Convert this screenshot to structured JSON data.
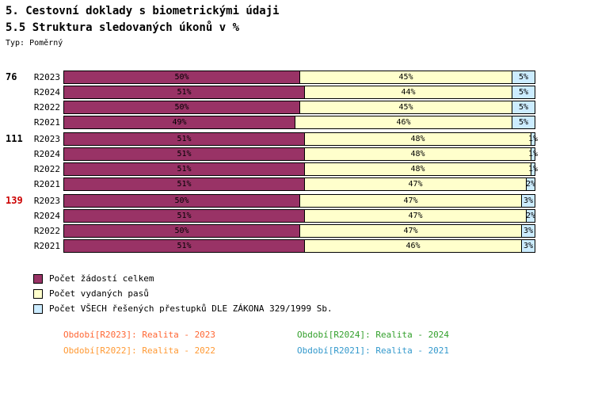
{
  "header": {
    "title1": "5. Cestovní doklady s biometrickými údaji",
    "title2": "5.5 Struktura sledovaných úkonů v %",
    "type_label": "Typ: Poměrný"
  },
  "chart_data": {
    "type": "bar",
    "stacked": true,
    "orientation": "horizontal",
    "unit": "%",
    "xlim": [
      0,
      100
    ],
    "grid": false,
    "legend_position": "bottom-left",
    "series": [
      {
        "name": "Počet žádostí celkem",
        "color": "#993366"
      },
      {
        "name": "Počet vydaných pasů",
        "color": "#FFFFCC"
      },
      {
        "name": "Počet VŠECH řešených přestupků DLE ZÁKONA 329/1999 Sb.",
        "color": "#CCECFF"
      }
    ],
    "groups": [
      {
        "label": "76",
        "label_color": "#000000",
        "rows": [
          {
            "year": "R2023",
            "values": [
              50,
              45,
              5
            ]
          },
          {
            "year": "R2024",
            "values": [
              51,
              44,
              5
            ]
          },
          {
            "year": "R2022",
            "values": [
              50,
              45,
              5
            ]
          },
          {
            "year": "R2021",
            "values": [
              49,
              46,
              5
            ]
          }
        ]
      },
      {
        "label": "111",
        "label_color": "#000000",
        "rows": [
          {
            "year": "R2023",
            "values": [
              51,
              48,
              1
            ]
          },
          {
            "year": "R2024",
            "values": [
              51,
              48,
              1
            ]
          },
          {
            "year": "R2022",
            "values": [
              51,
              48,
              1
            ]
          },
          {
            "year": "R2021",
            "values": [
              51,
              47,
              2
            ]
          }
        ]
      },
      {
        "label": "139",
        "label_color": "#CC0000",
        "rows": [
          {
            "year": "R2023",
            "values": [
              50,
              47,
              3
            ]
          },
          {
            "year": "R2024",
            "values": [
              51,
              47,
              2
            ]
          },
          {
            "year": "R2022",
            "values": [
              50,
              47,
              3
            ]
          },
          {
            "year": "R2021",
            "values": [
              51,
              46,
              3
            ]
          }
        ]
      }
    ]
  },
  "footnotes": [
    {
      "text": "Období[R2023]: Realita - 2023",
      "color": "#FF6633"
    },
    {
      "text": "Období[R2024]: Realita - 2024",
      "color": "#33A02C"
    },
    {
      "text": "Období[R2022]: Realita - 2022",
      "color": "#FF9933"
    },
    {
      "text": "Období[R2021]: Realita - 2021",
      "color": "#3399CC"
    }
  ]
}
